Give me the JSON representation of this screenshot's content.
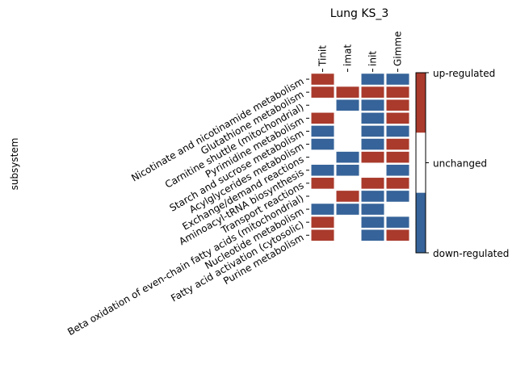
{
  "chart_data": {
    "type": "heatmap",
    "title": "Lung KS_3",
    "ylabel": "subsystem",
    "xlabel": "",
    "columns": [
      "Tinit",
      "imat",
      "init",
      "Gimme"
    ],
    "rows": [
      "Nicotinate and nicotinamide metabolism",
      "Glutathione metabolism",
      "Carnitine shuttle (mitochondrial)",
      "Pyrimidine metabolism",
      "Starch and sucrose metabolism",
      "Acylglycerides metabolism",
      "Exchange/demand reactions",
      "Aminoacyl-tRNA biosynthesis",
      "Transport reactions",
      "Beta oxidation of even-chain fatty acids (mitochondrial)",
      "Nucleotide metabolism",
      "Fatty acid activation (cytosolic)",
      "Purine metabolism"
    ],
    "values": [
      [
        1,
        0,
        -1,
        -1
      ],
      [
        1,
        1,
        1,
        1
      ],
      [
        0,
        -1,
        -1,
        1
      ],
      [
        1,
        0,
        -1,
        1
      ],
      [
        -1,
        0,
        -1,
        -1
      ],
      [
        -1,
        0,
        -1,
        1
      ],
      [
        0,
        -1,
        1,
        1
      ],
      [
        -1,
        -1,
        0,
        -1
      ],
      [
        1,
        0,
        1,
        1
      ],
      [
        0,
        1,
        -1,
        -1
      ],
      [
        -1,
        -1,
        -1,
        0
      ],
      [
        1,
        0,
        -1,
        -1
      ],
      [
        1,
        0,
        -1,
        1
      ]
    ],
    "colorbar": {
      "labels": [
        "up-regulated",
        "unchanged",
        "down-regulated"
      ],
      "colors": {
        "up": "#a93a2c",
        "unchanged": "#ffffff",
        "down": "#366399"
      }
    },
    "grid": false
  }
}
